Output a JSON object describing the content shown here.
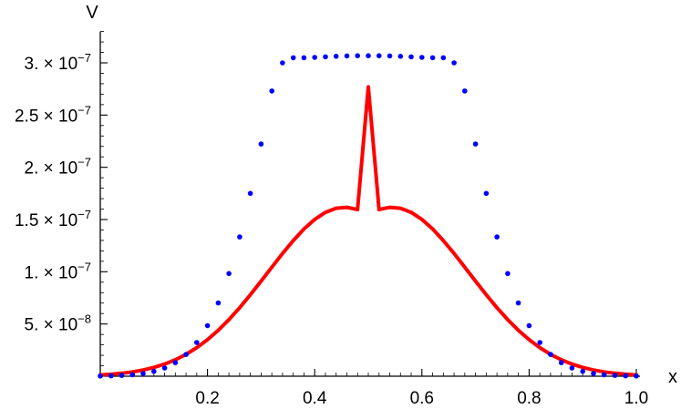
{
  "chart_data": {
    "type": "line",
    "xlabel": "x",
    "ylabel": "V",
    "xlim": [
      0.0,
      1.0
    ],
    "ylim": [
      0.0,
      3.3e-07
    ],
    "grid": false,
    "x_ticks": [
      {
        "value": 0.2,
        "label": "0.2"
      },
      {
        "value": 0.4,
        "label": "0.4"
      },
      {
        "value": 0.6,
        "label": "0.6"
      },
      {
        "value": 0.8,
        "label": "0.8"
      },
      {
        "value": 1.0,
        "label": "1.0"
      }
    ],
    "y_ticks": [
      {
        "value": 5e-08,
        "mantissa": "5.",
        "exponent": "−8"
      },
      {
        "value": 1e-07,
        "mantissa": "1.",
        "exponent": "−7"
      },
      {
        "value": 1.5e-07,
        "mantissa": "1.5",
        "exponent": "−7"
      },
      {
        "value": 2e-07,
        "mantissa": "2.",
        "exponent": "−7"
      },
      {
        "value": 2.5e-07,
        "mantissa": "2.5",
        "exponent": "−7"
      },
      {
        "value": 3e-07,
        "mantissa": "3.",
        "exponent": "−7"
      }
    ],
    "series": [
      {
        "style": "dots",
        "color": "#0000ff",
        "x": [
          0.0,
          0.02,
          0.04,
          0.06,
          0.08,
          0.1,
          0.12,
          0.14,
          0.16,
          0.18,
          0.2,
          0.22,
          0.24,
          0.26,
          0.28,
          0.3,
          0.32,
          0.34,
          0.36,
          0.38,
          0.4,
          0.42,
          0.44,
          0.46,
          0.48,
          0.5,
          0.52,
          0.54,
          0.56,
          0.58,
          0.6,
          0.62,
          0.64,
          0.66,
          0.68,
          0.7,
          0.72,
          0.74,
          0.76,
          0.78,
          0.8,
          0.82,
          0.84,
          0.86,
          0.88,
          0.9,
          0.92,
          0.94,
          0.96,
          0.98,
          1.0
        ],
        "y": [
          2e-10,
          3.9e-10,
          7.6e-10,
          1.43e-09,
          2.61e-09,
          4.61e-09,
          7.88e-09,
          1.303e-08,
          2.085e-08,
          3.229e-08,
          4.838e-08,
          7.012e-08,
          9.831e-08,
          1.3337e-07,
          1.7505e-07,
          2.2226e-07,
          2.7304e-07,
          2.9996e-07,
          3.0489e-07,
          3.0486e-07,
          3.0523e-07,
          3.0576e-07,
          3.0624e-07,
          3.066e-07,
          3.0679e-07,
          3.068e-07,
          3.0679e-07,
          3.066e-07,
          3.0624e-07,
          3.0576e-07,
          3.0523e-07,
          3.0486e-07,
          3.0489e-07,
          2.9996e-07,
          2.7304e-07,
          2.2226e-07,
          1.7505e-07,
          1.3337e-07,
          9.831e-08,
          7.012e-08,
          4.838e-08,
          3.229e-08,
          2.085e-08,
          1.303e-08,
          7.88e-09,
          4.61e-09,
          2.61e-09,
          1.43e-09,
          7.6e-10,
          3.9e-10,
          2e-10
        ]
      },
      {
        "style": "line",
        "color": "#ff0000",
        "x": [
          0.0,
          0.02,
          0.04,
          0.06,
          0.08,
          0.1,
          0.12,
          0.14,
          0.16,
          0.18,
          0.2,
          0.22,
          0.24,
          0.26,
          0.28,
          0.3,
          0.32,
          0.34,
          0.36,
          0.38,
          0.4,
          0.42,
          0.44,
          0.46,
          0.48,
          0.5,
          0.52,
          0.54,
          0.56,
          0.58,
          0.6,
          0.62,
          0.64,
          0.66,
          0.68,
          0.7,
          0.72,
          0.74,
          0.76,
          0.78,
          0.8,
          0.82,
          0.84,
          0.86,
          0.88,
          0.9,
          0.92,
          0.94,
          0.96,
          0.98,
          1.0
        ],
        "y": [
          1.21e-09,
          1.86e-09,
          2.79e-09,
          4.11e-09,
          5.93e-09,
          8.37e-09,
          1.158e-08,
          1.571e-08,
          2.091e-08,
          2.73e-08,
          3.496e-08,
          4.393e-08,
          5.418e-08,
          6.56e-08,
          7.798e-08,
          9.104e-08,
          1.0437e-07,
          1.175e-07,
          1.2989e-07,
          1.4095e-07,
          1.5012e-07,
          1.5687e-07,
          1.6083e-07,
          1.6171e-07,
          1.595e-07,
          2.77e-07,
          1.595e-07,
          1.6171e-07,
          1.6083e-07,
          1.5687e-07,
          1.5012e-07,
          1.4095e-07,
          1.2989e-07,
          1.175e-07,
          1.0437e-07,
          9.104e-08,
          7.798e-08,
          6.56e-08,
          5.418e-08,
          4.393e-08,
          3.496e-08,
          2.73e-08,
          2.091e-08,
          1.571e-08,
          1.158e-08,
          8.37e-09,
          5.93e-09,
          4.11e-09,
          2.79e-09,
          1.86e-09,
          1.21e-09
        ]
      }
    ]
  }
}
